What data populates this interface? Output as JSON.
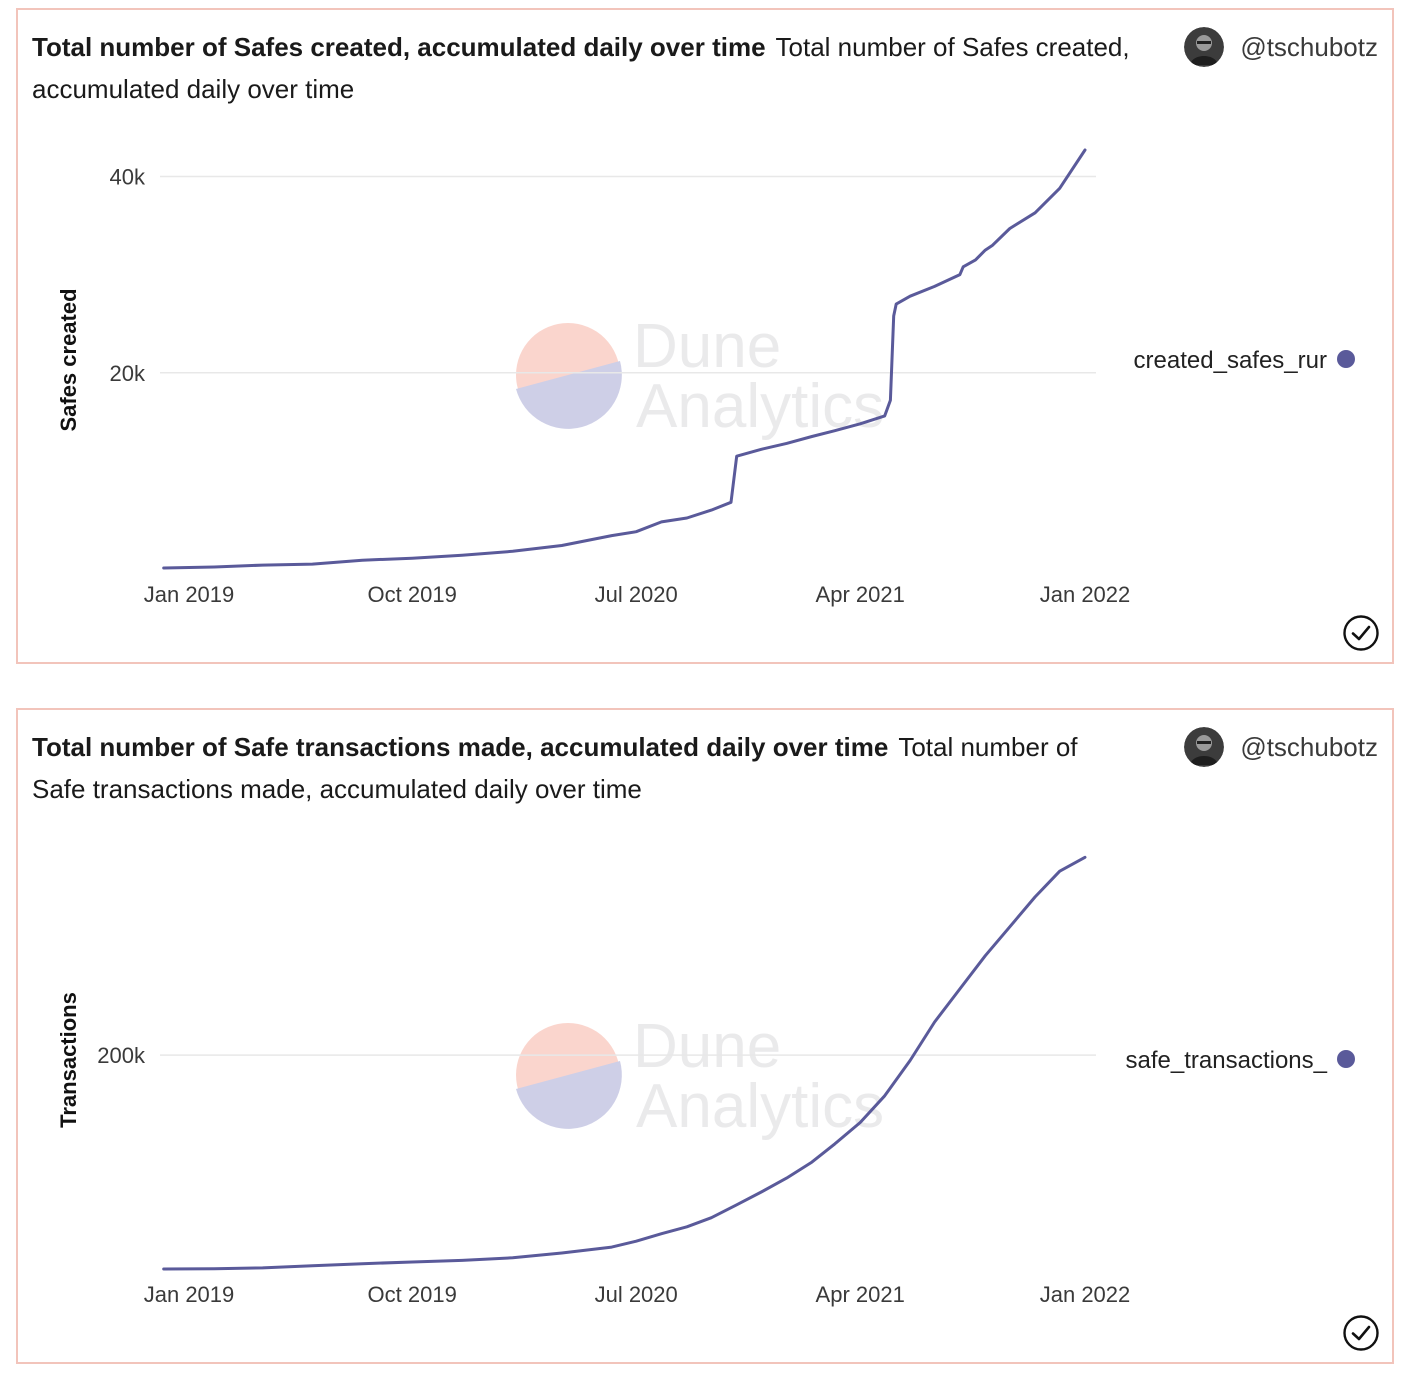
{
  "panels": [
    {
      "title": "Total number of Safes created, accumulated daily over time",
      "description": "Total number of Safes created, accumulated daily over time",
      "author": "@tschubotz",
      "legend": "created_safes_rur",
      "watermark": [
        "Dune",
        "Analytics"
      ],
      "colors": {
        "line": "#5a5a9a",
        "border": "#f2c4bb",
        "grid": "#e8e8e8"
      },
      "icons": {
        "avatar": "avatar-icon",
        "check": "check-circle-icon",
        "legend": "legend-dot-icon"
      },
      "chart_data": {
        "type": "line",
        "ylabel": "Safes created",
        "xlabel": "",
        "x_ticks": [
          "Jan 2019",
          "Oct 2019",
          "Jul 2020",
          "Apr 2021",
          "Jan 2022"
        ],
        "x_tick_dates": [
          "2019-01-01",
          "2019-10-01",
          "2020-07-01",
          "2021-04-01",
          "2022-01-01"
        ],
        "y_ticks": [
          20000,
          40000
        ],
        "y_tick_labels": [
          "20k",
          "40k"
        ],
        "ylim": [
          0,
          42500
        ],
        "grid": true,
        "legend_position": "right",
        "series": [
          {
            "name": "created_safes_rur",
            "x": [
              "2018-12-01",
              "2019-02-01",
              "2019-04-01",
              "2019-06-01",
              "2019-08-01",
              "2019-10-01",
              "2019-12-01",
              "2020-02-01",
              "2020-04-01",
              "2020-06-01",
              "2020-07-01",
              "2020-08-01",
              "2020-09-01",
              "2020-10-01",
              "2020-10-25",
              "2020-11-01",
              "2020-12-01",
              "2021-01-01",
              "2021-02-01",
              "2021-03-01",
              "2021-04-01",
              "2021-05-01",
              "2021-05-08",
              "2021-05-12",
              "2021-05-15",
              "2021-06-01",
              "2021-07-01",
              "2021-08-01",
              "2021-08-05",
              "2021-08-20",
              "2021-09-01",
              "2021-09-10",
              "2021-10-01",
              "2021-11-01",
              "2021-12-01",
              "2022-01-01"
            ],
            "y": [
              100,
              200,
              400,
              500,
              900,
              1100,
              1400,
              1800,
              2400,
              3400,
              3800,
              4800,
              5200,
              6000,
              6800,
              11500,
              12200,
              12800,
              13500,
              14100,
              14800,
              15600,
              17200,
              25800,
              27000,
              27800,
              28800,
              30000,
              30800,
              31500,
              32500,
              33000,
              34700,
              36300,
              38800,
              42700
            ]
          }
        ]
      }
    },
    {
      "title": "Total number of Safe transactions made, accumulated daily over time",
      "description": "Total number of Safe transactions made, accumulated daily over time",
      "author": "@tschubotz",
      "legend": "safe_transactions_",
      "watermark": [
        "Dune",
        "Analytics"
      ],
      "colors": {
        "line": "#5a5a9a",
        "border": "#f2c4bb",
        "grid": "#e8e8e8"
      },
      "icons": {
        "avatar": "avatar-icon",
        "check": "check-circle-icon",
        "legend": "legend-dot-icon"
      },
      "chart_data": {
        "type": "line",
        "ylabel": "Transactions",
        "xlabel": "",
        "x_ticks": [
          "Jan 2019",
          "Oct 2019",
          "Jul 2020",
          "Apr 2021",
          "Jan 2022"
        ],
        "x_tick_dates": [
          "2019-01-01",
          "2019-10-01",
          "2020-07-01",
          "2021-04-01",
          "2022-01-01"
        ],
        "y_ticks": [
          200000
        ],
        "y_tick_labels": [
          "200k"
        ],
        "ylim": [
          0,
          390000
        ],
        "grid": true,
        "legend_position": "right",
        "series": [
          {
            "name": "safe_transactions_",
            "x": [
              "2018-12-01",
              "2019-02-01",
              "2019-04-01",
              "2019-06-01",
              "2019-08-01",
              "2019-10-01",
              "2019-12-01",
              "2020-02-01",
              "2020-04-01",
              "2020-06-01",
              "2020-07-01",
              "2020-08-01",
              "2020-09-01",
              "2020-10-01",
              "2020-11-01",
              "2020-12-01",
              "2021-01-01",
              "2021-02-01",
              "2021-03-01",
              "2021-04-01",
              "2021-05-01",
              "2021-06-01",
              "2021-07-01",
              "2021-08-01",
              "2021-09-01",
              "2021-10-01",
              "2021-11-01",
              "2021-12-01",
              "2022-01-01"
            ],
            "y": [
              0,
              300,
              1000,
              3000,
              5000,
              6500,
              8000,
              10500,
              15000,
              20500,
              26000,
              33000,
              39500,
              48000,
              60000,
              72000,
              85000,
              100000,
              117000,
              137000,
              162000,
              195000,
              231000,
              262000,
              293000,
              320000,
              348000,
              372000,
              385000
            ]
          }
        ]
      }
    }
  ]
}
